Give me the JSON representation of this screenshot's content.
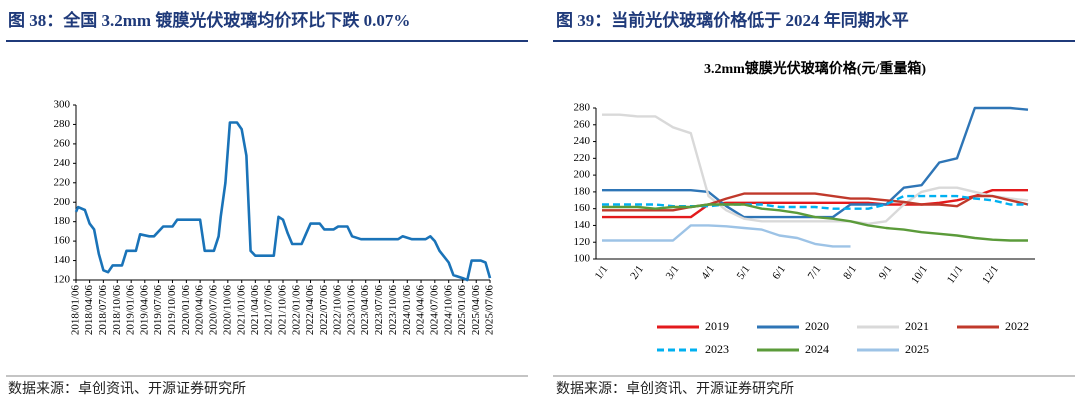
{
  "chart_data": [
    {
      "type": "line",
      "figure_title": "图 38：全国 3.2mm 镀膜光伏玻璃均价环比下跌 0.07%",
      "source": "数据来源：卓创资讯、开源证券研究所",
      "color": "#1a73b8",
      "xlim": [
        "2018/01/06",
        "2025/07/06"
      ],
      "xticks": [
        "2018/01/06",
        "2018/04/06",
        "2018/07/06",
        "2018/10/06",
        "2019/01/06",
        "2019/04/06",
        "2019/07/06",
        "2019/10/06",
        "2020/01/06",
        "2020/04/06",
        "2020/07/06",
        "2020/10/06",
        "2021/01/06",
        "2021/04/06",
        "2021/07/06",
        "2021/10/06",
        "2022/01/06",
        "2022/04/06",
        "2022/07/06",
        "2022/10/06",
        "2023/01/06",
        "2023/04/06",
        "2023/07/06",
        "2023/10/06",
        "2024/01/06",
        "2024/04/06",
        "2024/07/06",
        "2024/10/06",
        "2025/01/06",
        "2025/04/06",
        "2025/07/06"
      ],
      "ylim": [
        120,
        300
      ],
      "yticks": [
        120,
        140,
        160,
        180,
        200,
        220,
        240,
        260,
        280,
        300
      ],
      "x": [
        "2018/01/06",
        "2018/01/20",
        "2018/03/06",
        "2018/04/06",
        "2018/05/06",
        "2018/06/06",
        "2018/07/06",
        "2018/08/06",
        "2018/09/06",
        "2018/11/06",
        "2018/12/06",
        "2019/02/06",
        "2019/03/06",
        "2019/05/06",
        "2019/06/06",
        "2019/08/06",
        "2019/10/06",
        "2019/11/06",
        "2020/04/06",
        "2020/05/06",
        "2020/07/06",
        "2020/08/06",
        "2020/08/20",
        "2020/09/20",
        "2020/10/20",
        "2020/12/06",
        "2021/01/06",
        "2021/02/06",
        "2021/03/06",
        "2021/04/06",
        "2021/08/06",
        "2021/09/06",
        "2021/10/06",
        "2021/11/06",
        "2021/12/06",
        "2022/02/06",
        "2022/03/06",
        "2022/04/06",
        "2022/06/06",
        "2022/07/06",
        "2022/09/06",
        "2022/10/06",
        "2022/12/06",
        "2023/01/06",
        "2023/03/06",
        "2023/11/06",
        "2023/12/06",
        "2024/02/06",
        "2024/05/06",
        "2024/06/06",
        "2024/07/06",
        "2024/08/06",
        "2024/10/06",
        "2024/11/06",
        "2025/01/06",
        "2025/02/06",
        "2025/03/06",
        "2025/05/06",
        "2025/06/06",
        "2025/07/06"
      ],
      "values": [
        190,
        195,
        192,
        178,
        172,
        147,
        130,
        128,
        135,
        135,
        150,
        150,
        167,
        165,
        165,
        175,
        175,
        182,
        182,
        150,
        150,
        165,
        185,
        220,
        282,
        282,
        275,
        248,
        150,
        145,
        145,
        185,
        182,
        168,
        157,
        157,
        167,
        178,
        178,
        172,
        172,
        175,
        175,
        165,
        162,
        162,
        165,
        162,
        162,
        165,
        160,
        150,
        138,
        125,
        122,
        120,
        140,
        140,
        138,
        122
      ]
    },
    {
      "type": "line",
      "figure_title": "图 39：当前光伏玻璃价格低于 2024 年同期水平",
      "title": "3.2mm镀膜光伏玻璃价格(元/重量箱)",
      "source": "数据来源：卓创资讯、开源证券研究所",
      "categories": [
        "1/1",
        null,
        "2/1",
        null,
        "3/1",
        null,
        "4/1",
        null,
        "5/1",
        null,
        "6/1",
        null,
        "7/1",
        null,
        "8/1",
        null,
        "9/1",
        null,
        "10/1",
        null,
        "11/1",
        null,
        "12/1",
        null,
        null
      ],
      "ylim": [
        100,
        280
      ],
      "yticks": [
        100,
        120,
        140,
        160,
        180,
        200,
        220,
        240,
        260,
        280
      ],
      "legend": "bottom",
      "series": [
        {
          "name": "2019",
          "color": "#e31a1c",
          "values": [
            150,
            150,
            150,
            150,
            150,
            150,
            165,
            167,
            167,
            167,
            167,
            167,
            167,
            167,
            167,
            167,
            165,
            165,
            165,
            167,
            170,
            175,
            182,
            182,
            182
          ]
        },
        {
          "name": "2020",
          "color": "#2e75b6",
          "values": [
            182,
            182,
            182,
            182,
            182,
            182,
            180,
            163,
            150,
            150,
            150,
            150,
            150,
            150,
            165,
            165,
            165,
            185,
            188,
            215,
            220,
            280,
            280,
            280,
            278
          ]
        },
        {
          "name": "2021",
          "color": "#d9d9d9",
          "values": [
            272,
            272,
            270,
            270,
            257,
            250,
            175,
            158,
            148,
            145,
            145,
            145,
            145,
            145,
            145,
            142,
            145,
            165,
            180,
            185,
            185,
            180,
            175,
            172,
            170
          ]
        },
        {
          "name": "2022",
          "color": "#c0392b",
          "values": [
            158,
            158,
            158,
            158,
            158,
            162,
            165,
            172,
            178,
            178,
            178,
            178,
            178,
            175,
            172,
            172,
            170,
            168,
            165,
            165,
            163,
            175,
            175,
            170,
            165
          ]
        },
        {
          "name": "2023",
          "color": "#00b0f0",
          "dashed": true,
          "values": [
            165,
            165,
            165,
            165,
            163,
            163,
            163,
            165,
            165,
            165,
            162,
            162,
            162,
            160,
            160,
            160,
            165,
            175,
            175,
            175,
            175,
            172,
            170,
            165,
            165
          ]
        },
        {
          "name": "2024",
          "color": "#5b9b3a",
          "values": [
            162,
            162,
            162,
            160,
            162,
            162,
            165,
            165,
            165,
            160,
            158,
            155,
            150,
            148,
            145,
            140,
            137,
            135,
            132,
            130,
            128,
            125,
            123,
            122,
            122
          ]
        },
        {
          "name": "2025",
          "color": "#9dc3e6",
          "values": [
            122,
            122,
            122,
            122,
            122,
            140,
            140,
            139,
            137,
            135,
            128,
            125,
            118,
            115,
            115,
            null,
            null,
            null,
            null,
            null,
            null,
            null,
            null,
            null,
            null
          ]
        }
      ]
    }
  ]
}
